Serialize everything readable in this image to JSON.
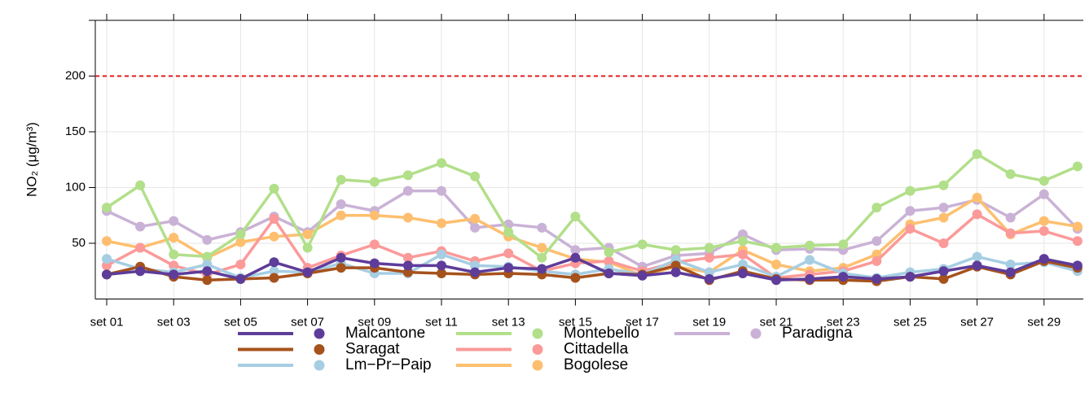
{
  "chart_data": {
    "type": "line",
    "ylabel": "NO₂ (μg/m³)",
    "categories": [
      "set 01",
      null,
      "set 03",
      null,
      "set 05",
      null,
      "set 07",
      null,
      "set 09",
      null,
      "set 11",
      null,
      "set 13",
      null,
      "set 15",
      null,
      "set 17",
      null,
      "set 19",
      null,
      "set 21",
      null,
      "set 23",
      null,
      "set 25",
      null,
      "set 27",
      null,
      "set 29",
      null
    ],
    "ylim": [
      0,
      250
    ],
    "yticks": [
      50,
      100,
      150,
      200
    ],
    "grid": true,
    "hline": {
      "value": 200,
      "color": "#e41a1c"
    },
    "series": [
      {
        "name": "Malcantone",
        "color": "#5e3c99",
        "values": [
          22,
          25,
          22,
          25,
          18,
          33,
          24,
          37,
          32,
          30,
          30,
          24,
          28,
          27,
          37,
          23,
          21,
          24,
          18,
          23,
          17,
          18,
          20,
          18,
          20,
          25,
          30,
          24,
          36,
          30
        ]
      },
      {
        "name": "Saragat",
        "color": "#a6521c",
        "values": [
          22,
          29,
          20,
          17,
          18,
          19,
          23,
          28,
          28,
          24,
          23,
          22,
          23,
          22,
          19,
          23,
          22,
          30,
          17,
          25,
          18,
          17,
          17,
          16,
          20,
          18,
          29,
          22,
          34,
          28
        ]
      },
      {
        "name": "Lm−Pr−Paip",
        "color": "#a6cee3",
        "values": [
          36,
          27,
          24,
          31,
          19,
          25,
          24,
          32,
          23,
          23,
          40,
          30,
          29,
          25,
          22,
          27,
          22,
          35,
          24,
          31,
          20,
          35,
          23,
          19,
          24,
          27,
          38,
          31,
          33,
          25
        ]
      },
      {
        "name": "Montebello",
        "color": "#b2df8a",
        "values": [
          82,
          102,
          40,
          38,
          58,
          99,
          46,
          107,
          105,
          111,
          122,
          110,
          60,
          37,
          74,
          42,
          49,
          44,
          46,
          52,
          46,
          48,
          49,
          82,
          97,
          102,
          130,
          112,
          106,
          119
        ]
      },
      {
        "name": "Cittadella",
        "color": "#fb9a99",
        "values": [
          30,
          46,
          30,
          22,
          31,
          72,
          28,
          39,
          49,
          37,
          43,
          34,
          41,
          25,
          32,
          34,
          25,
          33,
          37,
          40,
          19,
          22,
          25,
          34,
          63,
          50,
          76,
          59,
          61,
          52
        ]
      },
      {
        "name": "Bogolese",
        "color": "#fdbf6f",
        "values": [
          52,
          46,
          55,
          37,
          51,
          56,
          58,
          75,
          75,
          73,
          68,
          72,
          56,
          46,
          36,
          33,
          21,
          29,
          24,
          44,
          31,
          25,
          28,
          40,
          67,
          73,
          91,
          58,
          70,
          65
        ]
      },
      {
        "name": "Paradigna",
        "color": "#cab2d6",
        "values": [
          79,
          65,
          70,
          53,
          60,
          74,
          60,
          85,
          79,
          97,
          97,
          64,
          67,
          64,
          44,
          46,
          29,
          39,
          41,
          58,
          44,
          45,
          44,
          52,
          79,
          82,
          89,
          73,
          94,
          63
        ]
      }
    ]
  }
}
